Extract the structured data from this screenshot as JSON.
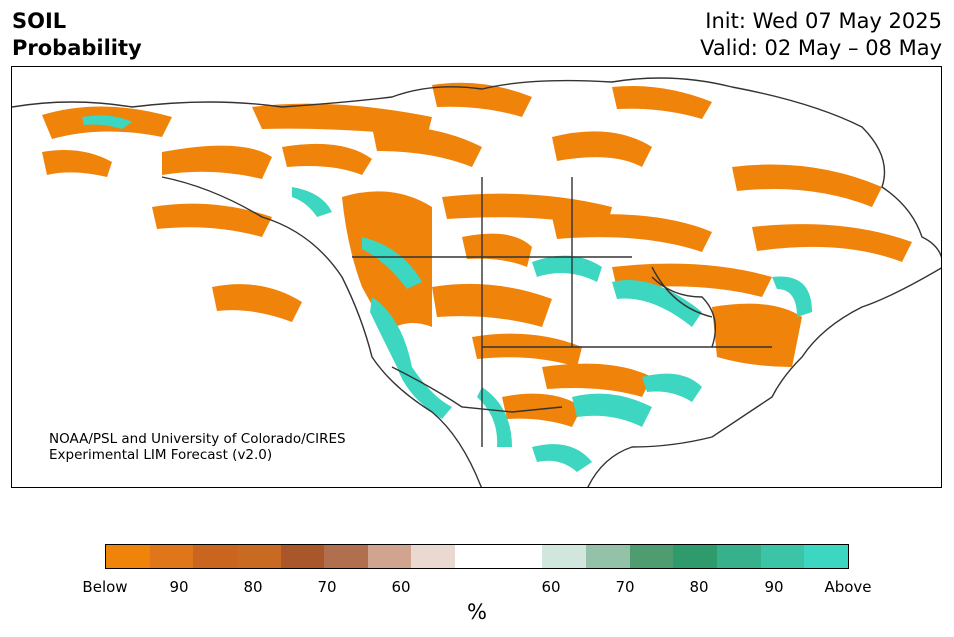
{
  "header": {
    "variable": "SOIL",
    "subtitle": "Probability",
    "init_line": "Init: Wed 07 May 2025",
    "valid_line": "Valid: 02 May – 08 May"
  },
  "map": {
    "credit_line1": "NOAA/PSL and University of Colorado/CIRES",
    "credit_line2": "Experimental LIM Forecast (v2.0)",
    "colors": {
      "below_strong": "#f0830a",
      "above_strong": "#3dd6c1",
      "border": "#333333"
    }
  },
  "colorbar": {
    "unit": "%",
    "colors": [
      "#f0830a",
      "#e0761a",
      "#c9651f",
      "#c96a22",
      "#a9562a",
      "#b07050",
      "#d0a48f",
      "#e9d9d0",
      "#ffffff",
      "#ffffff",
      "#d1e6dc",
      "#93c2a8",
      "#4f9c70",
      "#2f9a6b",
      "#37b08c",
      "#3bc4a5",
      "#3dd6c1"
    ],
    "ticks": [
      "Below",
      "90",
      "80",
      "70",
      "60",
      "60",
      "70",
      "80",
      "90",
      "Above"
    ]
  }
}
